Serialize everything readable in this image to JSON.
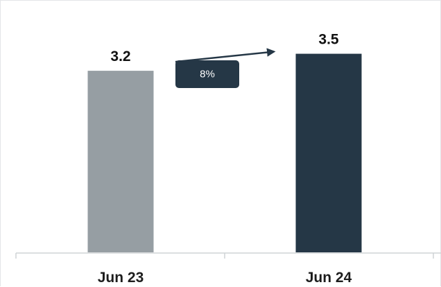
{
  "chart_data": {
    "type": "bar",
    "categories": [
      "Jun 23",
      "Jun 24"
    ],
    "values": [
      3.2,
      3.5
    ],
    "data_labels": [
      "3.2",
      "3.5"
    ],
    "ylim": [
      0,
      3.8
    ],
    "colors": [
      "#969ea3",
      "#253746"
    ],
    "grid": false,
    "legend": "none",
    "annotation": {
      "type": "growth-arrow",
      "label": "8%",
      "badge_color": "#253746",
      "text_color": "#ffffff"
    }
  }
}
